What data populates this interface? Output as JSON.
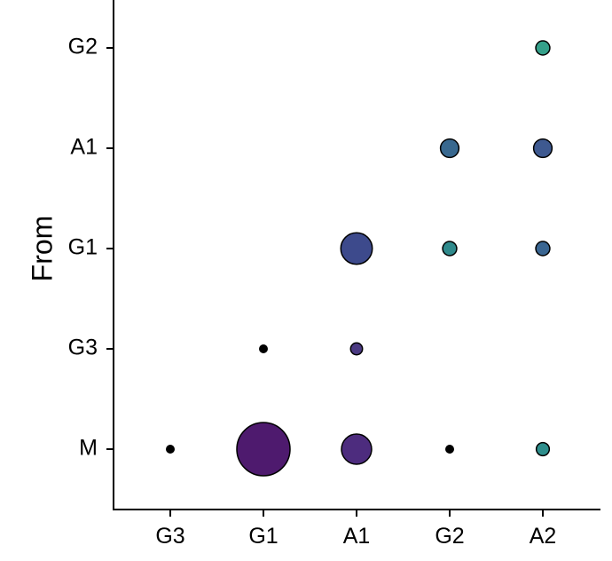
{
  "chart_data": {
    "type": "scatter",
    "subtype": "bubble",
    "title": "",
    "xlabel": "",
    "ylabel": "From",
    "x_categories": [
      "G3",
      "G1",
      "A1",
      "G2",
      "A2"
    ],
    "y_categories": [
      "M",
      "G3",
      "G1",
      "A1",
      "G2"
    ],
    "points": [
      {
        "x": "G3",
        "y": "M",
        "size": 0.02,
        "color": "#000000"
      },
      {
        "x": "G1",
        "y": "M",
        "size": 1.0,
        "color": "#4e1a6e"
      },
      {
        "x": "A1",
        "y": "M",
        "size": 0.32,
        "color": "#4d2c7e"
      },
      {
        "x": "G2",
        "y": "M",
        "size": 0.02,
        "color": "#000000"
      },
      {
        "x": "A2",
        "y": "M",
        "size": 0.06,
        "color": "#2e8e8c"
      },
      {
        "x": "G1",
        "y": "G3",
        "size": 0.02,
        "color": "#000000"
      },
      {
        "x": "A1",
        "y": "G3",
        "size": 0.05,
        "color": "#4b3a82"
      },
      {
        "x": "A1",
        "y": "G1",
        "size": 0.35,
        "color": "#3d4a8c"
      },
      {
        "x": "G2",
        "y": "G1",
        "size": 0.07,
        "color": "#2f8a8c"
      },
      {
        "x": "A2",
        "y": "G1",
        "size": 0.07,
        "color": "#3a6692"
      },
      {
        "x": "G2",
        "y": "A1",
        "size": 0.12,
        "color": "#38688f"
      },
      {
        "x": "A2",
        "y": "A1",
        "size": 0.12,
        "color": "#3e5990"
      },
      {
        "x": "A2",
        "y": "G2",
        "size": 0.07,
        "color": "#35a08a"
      }
    ],
    "grid": false,
    "legend": "none"
  }
}
